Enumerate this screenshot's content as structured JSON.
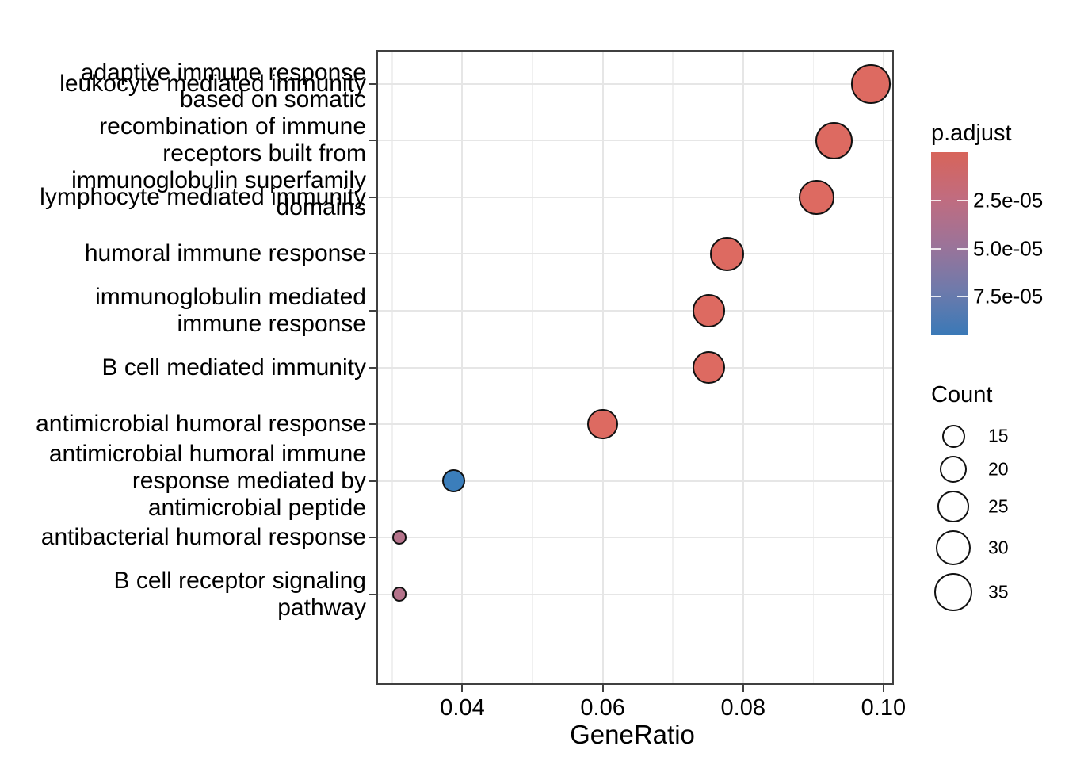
{
  "chart_data": {
    "type": "scatter",
    "subtype": "enrichment-dotplot",
    "title": "",
    "xlabel": "GeneRatio",
    "ylabel": "",
    "xlim": [
      0.02775,
      0.10148
    ],
    "x_major_ticks": [
      0.04,
      0.06,
      0.08,
      0.1
    ],
    "x_tick_labels": [
      "0.04",
      "0.06",
      "0.08",
      "0.10"
    ],
    "x_minor_gridlines": [
      0.03,
      0.05,
      0.07,
      0.09
    ],
    "grid": "on",
    "legend_position": "right",
    "categories": [
      "leukocyte mediated immunity",
      "adaptive immune response based on somatic recombination of immune receptors built from immunoglobulin superfamily domains",
      "lymphocyte mediated immunity",
      "humoral immune response",
      "immunoglobulin mediated immune response",
      "B cell mediated immunity",
      "antimicrobial humoral response",
      "antimicrobial humoral immune response mediated by antimicrobial peptide",
      "antibacterial humoral response",
      "B cell receptor signaling pathway"
    ],
    "category_display": [
      "leukocyte mediated immunity",
      "adaptive immune response\nbased on somatic\nrecombination of immune\nreceptors built from\nimmunoglobulin superfamily\ndomains",
      "lymphocyte mediated immunity",
      "humoral immune response",
      "immunoglobulin mediated\nimmune response",
      "B cell mediated immunity",
      "antimicrobial humoral response",
      "antimicrobial humoral immune\nresponse mediated by\nantimicrobial peptide",
      "antibacterial humoral response",
      "B cell receptor signaling\npathway"
    ],
    "points": [
      {
        "category_index": 0,
        "gene_ratio": 0.0982,
        "count": 37,
        "p_adjust": 1e-06,
        "color": "#DD6A61"
      },
      {
        "category_index": 1,
        "gene_ratio": 0.093,
        "count": 34,
        "p_adjust": 1e-06,
        "color": "#DD6A61"
      },
      {
        "category_index": 2,
        "gene_ratio": 0.0905,
        "count": 31,
        "p_adjust": 1e-06,
        "color": "#DD6A61"
      },
      {
        "category_index": 3,
        "gene_ratio": 0.0777,
        "count": 28,
        "p_adjust": 1e-06,
        "color": "#DD6A61"
      },
      {
        "category_index": 4,
        "gene_ratio": 0.0751,
        "count": 27,
        "p_adjust": 1e-06,
        "color": "#DD6A61"
      },
      {
        "category_index": 5,
        "gene_ratio": 0.0751,
        "count": 27,
        "p_adjust": 1e-06,
        "color": "#DD6A61"
      },
      {
        "category_index": 6,
        "gene_ratio": 0.06,
        "count": 24,
        "p_adjust": 5e-06,
        "color": "#DD6A61"
      },
      {
        "category_index": 7,
        "gene_ratio": 0.0388,
        "count": 15,
        "p_adjust": 9e-05,
        "color": "#3B7EBB"
      },
      {
        "category_index": 8,
        "gene_ratio": 0.031,
        "count": 8,
        "p_adjust": 2.8e-05,
        "color": "#B5738B"
      },
      {
        "category_index": 9,
        "gene_ratio": 0.031,
        "count": 8,
        "p_adjust": 2.8e-05,
        "color": "#B5738B"
      }
    ],
    "legends": {
      "color": {
        "title": "p.adjust",
        "domain": [
          0,
          9.5e-05
        ],
        "gradient": [
          "#D7645A",
          "#C16C7F",
          "#9D7398",
          "#6F7AAB",
          "#3A79B7"
        ],
        "ticks": [
          {
            "value": 2.5e-05,
            "label": "2.5e-05"
          },
          {
            "value": 5e-05,
            "label": "5.0e-05"
          },
          {
            "value": 7.5e-05,
            "label": "7.5e-05"
          }
        ]
      },
      "size": {
        "title": "Count",
        "items": [
          {
            "value": 15,
            "label": "15"
          },
          {
            "value": 20,
            "label": "20"
          },
          {
            "value": 25,
            "label": "25"
          },
          {
            "value": 30,
            "label": "30"
          },
          {
            "value": 35,
            "label": "35"
          }
        ]
      }
    }
  }
}
